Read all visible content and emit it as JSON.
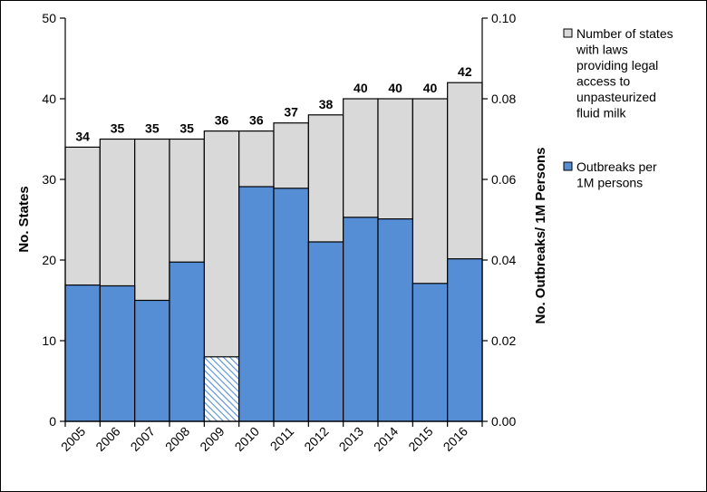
{
  "chart_data": {
    "type": "bar",
    "categories": [
      "2005",
      "2006",
      "2007",
      "2008",
      "2009",
      "2010",
      "2011",
      "2012",
      "2013",
      "2014",
      "2015",
      "2016"
    ],
    "series": [
      {
        "name": "Number of states with laws providing legal access to unpasteurized fluid milk",
        "axis": "left",
        "values": [
          34,
          35,
          35,
          35,
          36,
          36,
          37,
          38,
          40,
          40,
          40,
          42
        ],
        "color": "#d9d9d9",
        "data_labels": [
          "34",
          "35",
          "35",
          "35",
          "36",
          "36",
          "37",
          "38",
          "40",
          "40",
          "40",
          "42"
        ]
      },
      {
        "name": "Outbreaks per 1M persons",
        "axis": "right",
        "values": [
          0.0338,
          0.0336,
          0.03,
          0.0395,
          0.016,
          0.0582,
          0.0578,
          0.0445,
          0.0506,
          0.0502,
          0.0342,
          0.0403
        ],
        "color": "#558ed5",
        "hatched_categories": [
          "2009"
        ]
      }
    ],
    "ylabel": "No. States",
    "y2label": "No. Outbreaks/ 1M Persons",
    "ylim": [
      0,
      50
    ],
    "y2lim": [
      0,
      0.1
    ],
    "yticks": [
      "0",
      "10",
      "20",
      "30",
      "40",
      "50"
    ],
    "y2ticks": [
      "0.00",
      "0.02",
      "0.04",
      "0.06",
      "0.08",
      "0.10"
    ],
    "legend": {
      "placement": "right",
      "entries": [
        {
          "lines": [
            "Number of states",
            "with laws",
            "providing legal",
            "access to",
            "unpasteurized",
            "fluid milk"
          ],
          "color": "#d9d9d9"
        },
        {
          "lines": [
            "Outbreaks per",
            "1M persons"
          ],
          "color": "#558ed5"
        }
      ]
    },
    "grid": false
  }
}
